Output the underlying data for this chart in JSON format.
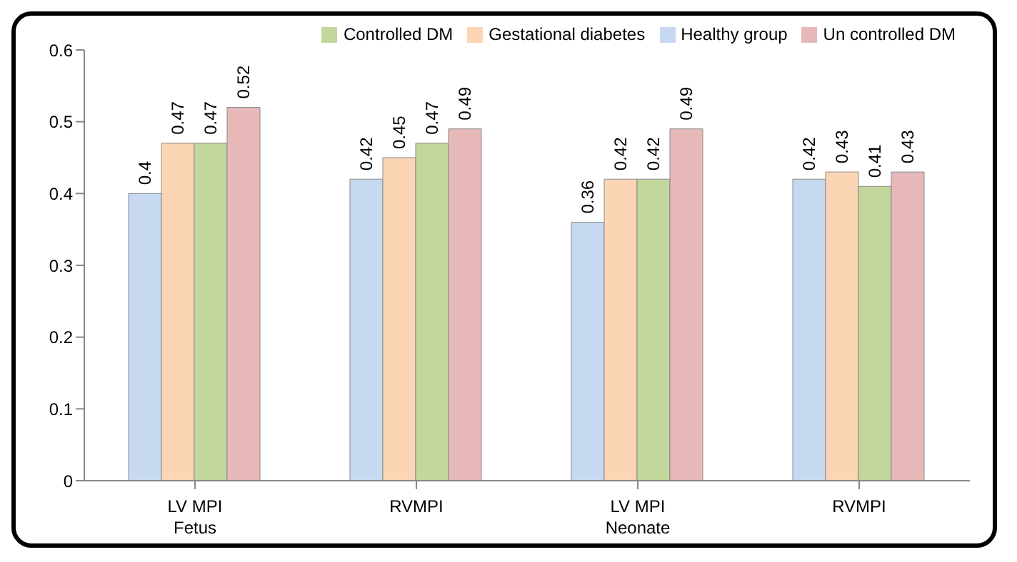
{
  "chart_data": {
    "type": "bar",
    "categories": [
      "LV MPI\nFetus",
      "RVMPI",
      "LV MPI\nNeonate",
      "RVMPI"
    ],
    "series": [
      {
        "name": "Healthy group",
        "color": "#c6d9f1",
        "values": [
          0.4,
          0.42,
          0.36,
          0.42
        ]
      },
      {
        "name": "Gestational diabetes",
        "color": "#fcd5b5",
        "values": [
          0.47,
          0.45,
          0.42,
          0.43
        ]
      },
      {
        "name": "Controlled DM",
        "color": "#c3d69b",
        "values": [
          0.47,
          0.47,
          0.42,
          0.41
        ]
      },
      {
        "name": "Un controlled DM",
        "color": "#e6b9b8",
        "values": [
          0.52,
          0.49,
          0.49,
          0.43
        ]
      }
    ],
    "ylim": [
      0,
      0.6
    ],
    "yticks": [
      0,
      0.1,
      0.2,
      0.3,
      0.4,
      0.5,
      0.6
    ],
    "grid": false,
    "legend": "top right",
    "data_labels": true
  }
}
